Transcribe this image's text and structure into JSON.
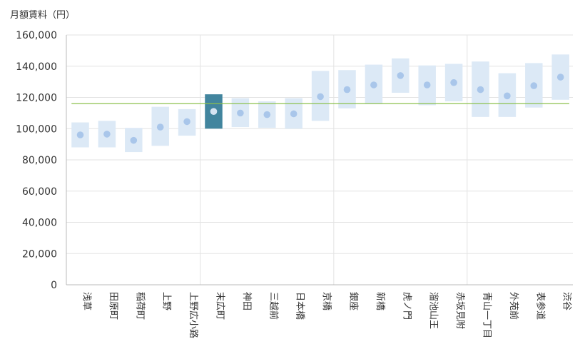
{
  "chart_data": {
    "type": "range",
    "ylabel": "月額賃料（円）",
    "ylim": [
      0,
      160000
    ],
    "yticks": [
      "0",
      "20,000",
      "40,000",
      "60,000",
      "80,000",
      "100,000",
      "120,000",
      "140,000",
      "160,000"
    ],
    "reference_line": 116000,
    "highlight_category": "末広町",
    "categories": [
      "浅草",
      "田原町",
      "稲荷町",
      "上野",
      "上野広小路",
      "末広町",
      "神田",
      "三越前",
      "日本橋",
      "京橋",
      "銀座",
      "新橋",
      "虎ノ門",
      "溜池山王",
      "赤坂見附",
      "青山一丁目",
      "外苑前",
      "表参道",
      "渋谷"
    ],
    "series": [
      {
        "name": "min",
        "values": [
          88000,
          88000,
          85000,
          89000,
          95500,
          100000,
          101000,
          100500,
          100000,
          105000,
          113000,
          116000,
          123000,
          115000,
          117500,
          107500,
          107500,
          113500,
          118500
        ]
      },
      {
        "name": "max",
        "values": [
          104000,
          105000,
          100500,
          114000,
          112500,
          122000,
          119500,
          117500,
          119500,
          137000,
          137500,
          141000,
          145000,
          140500,
          141500,
          143000,
          135500,
          142000,
          147500
        ]
      },
      {
        "name": "average",
        "values": [
          96000,
          96500,
          92500,
          101000,
          104500,
          111000,
          110000,
          109000,
          109500,
          120500,
          125000,
          128000,
          134000,
          128000,
          129500,
          125000,
          121000,
          127500,
          133000
        ]
      }
    ],
    "group_separators_after": [
      "上野広小路",
      "京橋",
      "赤坂見附"
    ],
    "colors": {
      "range": "#dce9f6",
      "highlight": "#42859e",
      "dot": "#a9c6ea",
      "highlight_dot": "#d6e4f2",
      "reference": "#8dc04e",
      "grid": "#e3e3e3",
      "axis": "#bbbbbb"
    }
  }
}
